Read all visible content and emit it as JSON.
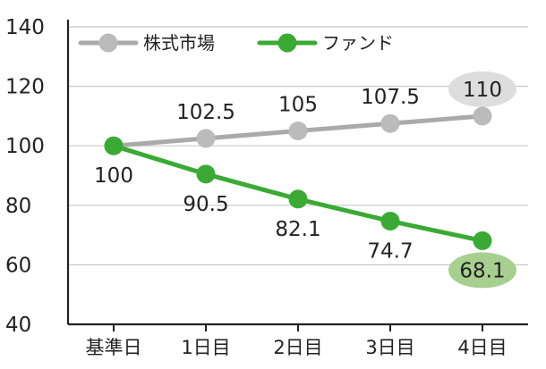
{
  "chart_data": {
    "type": "line",
    "categories": [
      "基準日",
      "1日目",
      "2日目",
      "3日目",
      "4日目"
    ],
    "ylim": [
      40,
      140
    ],
    "yticks": [
      40,
      60,
      80,
      100,
      120,
      140
    ],
    "grid": true,
    "legend_position": "top-left",
    "series": [
      {
        "name": "株式市場",
        "color": "#aaaaaa",
        "marker_color": "#bbbbbb",
        "values": [
          100,
          102.5,
          105,
          107.5,
          110
        ],
        "labels": [
          "",
          "102.5",
          "105",
          "107.5",
          "110"
        ],
        "highlight_last": true,
        "highlight_color": "#dddddd"
      },
      {
        "name": "ファンド",
        "color": "#3aaa35",
        "marker_color": "#3aaa35",
        "values": [
          100,
          90.5,
          82.1,
          74.7,
          68.1
        ],
        "labels": [
          "100",
          "90.5",
          "82.1",
          "74.7",
          "68.1"
        ],
        "highlight_last": true,
        "highlight_color": "#a7cf8f"
      }
    ]
  }
}
